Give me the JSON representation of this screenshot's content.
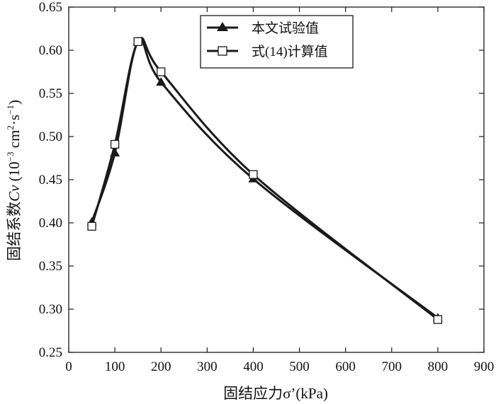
{
  "chart_data": {
    "type": "line",
    "title": "",
    "xlabel": "固结应力σ’(kPa)",
    "ylabel_prefix": "固结系数",
    "ylabel_var": "Cv",
    "ylabel_unit_open": " (10",
    "ylabel_exp1": "−3",
    "ylabel_mid": " cm",
    "ylabel_exp2": "2",
    "ylabel_mid2": "·s",
    "ylabel_exp3": "−1",
    "ylabel_close": ")",
    "xlim": [
      0,
      900
    ],
    "ylim": [
      0.25,
      0.65
    ],
    "xticks": [
      0,
      100,
      200,
      300,
      400,
      500,
      600,
      700,
      800,
      900
    ],
    "yticks": [
      0.25,
      0.3,
      0.35,
      0.4,
      0.45,
      0.5,
      0.55,
      0.6,
      0.65
    ],
    "xtick_labels": [
      "0",
      "100",
      "200",
      "300",
      "400",
      "500",
      "600",
      "700",
      "800",
      "900"
    ],
    "ytick_labels": [
      "0.25",
      "0.30",
      "0.35",
      "0.40",
      "0.45",
      "0.50",
      "0.55",
      "0.60",
      "0.65"
    ],
    "grid": false,
    "legend_position": "top-center",
    "series": [
      {
        "name": "本文试验值",
        "marker": "filled-triangle",
        "x": [
          50,
          100,
          150,
          200,
          400,
          800
        ],
        "y": [
          0.401,
          0.481,
          0.61,
          0.563,
          0.451,
          0.29
        ]
      },
      {
        "name": "式(14)计算值",
        "marker": "open-square",
        "x": [
          50,
          100,
          150,
          200,
          400,
          800
        ],
        "y": [
          0.396,
          0.491,
          0.61,
          0.575,
          0.456,
          0.288
        ]
      }
    ],
    "colors": {
      "line": "#1a1a1a",
      "background": "#ffffff"
    }
  }
}
